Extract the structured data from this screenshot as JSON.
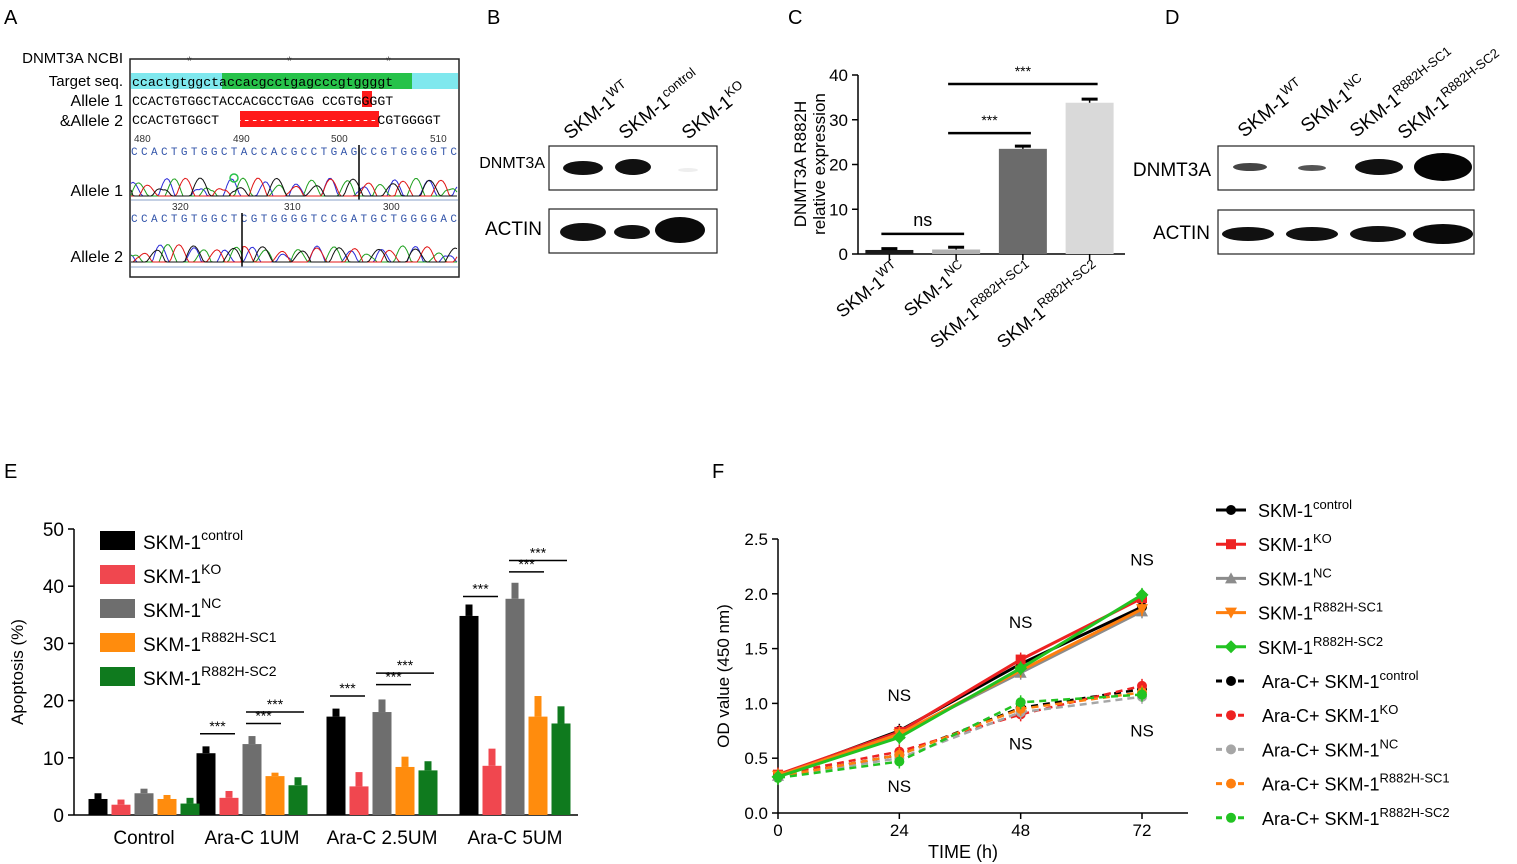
{
  "panel_labels": [
    "A",
    "B",
    "C",
    "D",
    "E",
    "F"
  ],
  "panelA": {
    "row_labels": [
      "DNMT3A NCBI",
      "Target seq.",
      "Allele 1",
      "&Allele 2",
      "Allele 1",
      "Allele 2"
    ],
    "target_seq": {
      "pre": "ccactgtgg",
      "mid": "ctaccacgcctgagcccgt",
      "post": "ggggt"
    },
    "allele1_seq": {
      "pre": "CCACTGTGGCTACCACGCCTGAG",
      "del": "-",
      "post": "CCGTGGGGT"
    },
    "allele2_seq": {
      "pre": "CCACTGTGGCT",
      "del": "--------------------",
      "post": "CGTGGGGT"
    },
    "trace1_ticks": [
      "480",
      "490",
      "500",
      "510"
    ],
    "trace1_seq": "CCACTGTGGCTACCACGCCTGAGCCGTGGGGTC",
    "trace2_ticks": [
      "320",
      "310",
      "300"
    ],
    "trace2_seq": "CCACTGTGGCTCGTGGGGTCCGATGCTGGGGAC",
    "colors": {
      "cyan": "#7fe8ee",
      "green": "#27c24a",
      "red": "#ff1a1a"
    }
  },
  "panelB": {
    "lanes": [
      {
        "base": "SKM-1",
        "sup": "WT"
      },
      {
        "base": "SKM-1",
        "sup": "control"
      },
      {
        "base": "SKM-1",
        "sup": "KO"
      }
    ],
    "rows": [
      "DNMT3A",
      "ACTIN"
    ]
  },
  "panelD": {
    "lanes": [
      {
        "base": "SKM-1",
        "sup": "WT"
      },
      {
        "base": "SKM-1",
        "sup": "NC"
      },
      {
        "base": "SKM-1",
        "sup": "R882H-SC1"
      },
      {
        "base": "SKM-1",
        "sup": "R882H-SC2"
      }
    ],
    "rows": [
      "DNMT3A",
      "ACTIN"
    ]
  },
  "chart_data": [
    {
      "id": "C",
      "type": "bar",
      "ylabel_line1": "DNMT3A R882H",
      "ylabel_line2": "relative expression",
      "ylim": [
        0,
        40
      ],
      "yticks": [
        "0",
        "10",
        "20",
        "30",
        "40"
      ],
      "categories": [
        {
          "base": "SKM-1",
          "sup": "WT"
        },
        {
          "base": "SKM-1",
          "sup": "NC"
        },
        {
          "base": "SKM-1",
          "sup": "R882H-SC1"
        },
        {
          "base": "SKM-1",
          "sup": "R882H-SC2"
        }
      ],
      "values": [
        0.9,
        1.0,
        23.5,
        33.8
      ],
      "errors": [
        0.3,
        0.5,
        0.6,
        0.8
      ],
      "colors": [
        "#1a1a1a",
        "#b0b0b0",
        "#6b6b6b",
        "#d9d9d9"
      ],
      "annotations": [
        {
          "label": "ns",
          "from": 0,
          "to": 1,
          "y": 4.5
        },
        {
          "label": "***",
          "from": 1,
          "to": 2,
          "y": 27
        },
        {
          "label": "***",
          "from": 1,
          "to": 3,
          "y": 38
        }
      ]
    },
    {
      "id": "E",
      "type": "bar",
      "ylabel": "Apoptosis (%)",
      "ylim": [
        0,
        50
      ],
      "yticks": [
        "0",
        "10",
        "20",
        "30",
        "40",
        "50"
      ],
      "categories": [
        "Control",
        "Ara-C  1UM",
        "Ara-C  2.5UM",
        "Ara-C  5UM"
      ],
      "series": [
        {
          "base": "SKM-1",
          "sup": "control",
          "color": "#000000",
          "values": [
            2.8,
            10.8,
            17.2,
            34.8
          ],
          "errors": [
            1.0,
            1.2,
            1.4,
            2.0
          ]
        },
        {
          "base": "SKM-1",
          "sup": "KO",
          "color": "#f0474f",
          "values": [
            1.8,
            3.0,
            5.0,
            8.6
          ],
          "errors": [
            0.9,
            1.2,
            2.5,
            3.0
          ]
        },
        {
          "base": "SKM-1",
          "sup": "NC",
          "color": "#6e6e6e",
          "values": [
            3.8,
            12.4,
            18.0,
            37.8
          ],
          "errors": [
            0.8,
            1.4,
            2.2,
            2.8
          ]
        },
        {
          "base": "SKM-1",
          "sup": "R882H-SC1",
          "color": "#ff8c0d",
          "values": [
            2.8,
            6.8,
            8.4,
            17.2
          ],
          "errors": [
            0.7,
            0.6,
            1.8,
            3.6
          ]
        },
        {
          "base": "SKM-1",
          "sup": "R882H-SC2",
          "color": "#0f7a1e",
          "values": [
            2.0,
            5.2,
            7.8,
            16.0
          ],
          "errors": [
            1.0,
            1.4,
            1.6,
            3.0
          ]
        }
      ],
      "annotations": [
        {
          "label": "***",
          "group": 1,
          "from": 0,
          "to": 1,
          "y": 14.2
        },
        {
          "label": "***",
          "group": 1,
          "from": 2,
          "to": 3,
          "y": 16.0
        },
        {
          "label": "***",
          "group": 1,
          "from": 2,
          "to": 4,
          "y": 18.0
        },
        {
          "label": "***",
          "group": 2,
          "from": 0,
          "to": 1,
          "y": 20.8
        },
        {
          "label": "***",
          "group": 2,
          "from": 2,
          "to": 3,
          "y": 22.8
        },
        {
          "label": "***",
          "group": 2,
          "from": 2,
          "to": 4,
          "y": 24.8
        },
        {
          "label": "***",
          "group": 3,
          "from": 0,
          "to": 1,
          "y": 38.2
        },
        {
          "label": "***",
          "group": 3,
          "from": 2,
          "to": 3,
          "y": 42.5
        },
        {
          "label": "***",
          "group": 3,
          "from": 2,
          "to": 4,
          "y": 44.5
        }
      ]
    },
    {
      "id": "F",
      "type": "line",
      "xlabel": "TIME (h)",
      "ylabel": "OD value (450 nm)",
      "x": [
        0,
        24,
        48,
        72
      ],
      "xticks": [
        "0",
        "24",
        "48",
        "72"
      ],
      "ylim": [
        0.0,
        2.5
      ],
      "yticks": [
        "0.0",
        "0.5",
        "1.0",
        "1.5",
        "2.0",
        "2.5"
      ],
      "series": [
        {
          "prefix": "",
          "base": "SKM-1",
          "sup": "control",
          "color": "#000000",
          "dash": false,
          "marker": "circle",
          "values": [
            0.34,
            0.75,
            1.36,
            1.88
          ]
        },
        {
          "prefix": "",
          "base": "SKM-1",
          "sup": "KO",
          "color": "#ee2222",
          "dash": false,
          "marker": "square",
          "values": [
            0.35,
            0.74,
            1.4,
            1.96
          ]
        },
        {
          "prefix": "",
          "base": "SKM-1",
          "sup": "NC",
          "color": "#8c8c8c",
          "dash": false,
          "marker": "triangle",
          "values": [
            0.34,
            0.72,
            1.28,
            1.84
          ]
        },
        {
          "prefix": "",
          "base": "SKM-1",
          "sup": "R882H-SC1",
          "color": "#ff7f0e",
          "dash": false,
          "marker": "tri-down",
          "values": [
            0.34,
            0.72,
            1.3,
            1.86
          ]
        },
        {
          "prefix": "",
          "base": "SKM-1",
          "sup": "R882H-SC2",
          "color": "#22c322",
          "dash": false,
          "marker": "diamond",
          "values": [
            0.33,
            0.69,
            1.32,
            1.99
          ]
        },
        {
          "prefix": "Ara-C+ ",
          "base": "SKM-1",
          "sup": "control",
          "color": "#000000",
          "dash": true,
          "marker": "circle",
          "values": [
            0.33,
            0.53,
            0.96,
            1.13
          ]
        },
        {
          "prefix": "Ara-C+ ",
          "base": "SKM-1",
          "sup": "KO",
          "color": "#ee2222",
          "dash": true,
          "marker": "circle",
          "values": [
            0.35,
            0.56,
            0.9,
            1.16
          ]
        },
        {
          "prefix": "Ara-C+ ",
          "base": "SKM-1",
          "sup": "NC",
          "color": "#a6a6a6",
          "dash": true,
          "marker": "circle",
          "values": [
            0.33,
            0.5,
            0.92,
            1.06
          ]
        },
        {
          "prefix": "Ara-C+ ",
          "base": "SKM-1",
          "sup": "R882H-SC1",
          "color": "#ff7f0e",
          "dash": true,
          "marker": "circle",
          "values": [
            0.33,
            0.53,
            0.95,
            1.1
          ]
        },
        {
          "prefix": "Ara-C+ ",
          "base": "SKM-1",
          "sup": "R882H-SC2",
          "color": "#22c322",
          "dash": true,
          "marker": "circle",
          "values": [
            0.32,
            0.47,
            1.01,
            1.08
          ]
        }
      ],
      "annotations": [
        {
          "label": "NS",
          "x": 24,
          "y": 1.02
        },
        {
          "label": "NS",
          "x": 48,
          "y": 1.69
        },
        {
          "label": "NS",
          "x": 72,
          "y": 2.26
        },
        {
          "label": "NS",
          "x": 24,
          "y": 0.19
        },
        {
          "label": "NS",
          "x": 48,
          "y": 0.58
        },
        {
          "label": "NS",
          "x": 72,
          "y": 0.7
        }
      ]
    }
  ]
}
